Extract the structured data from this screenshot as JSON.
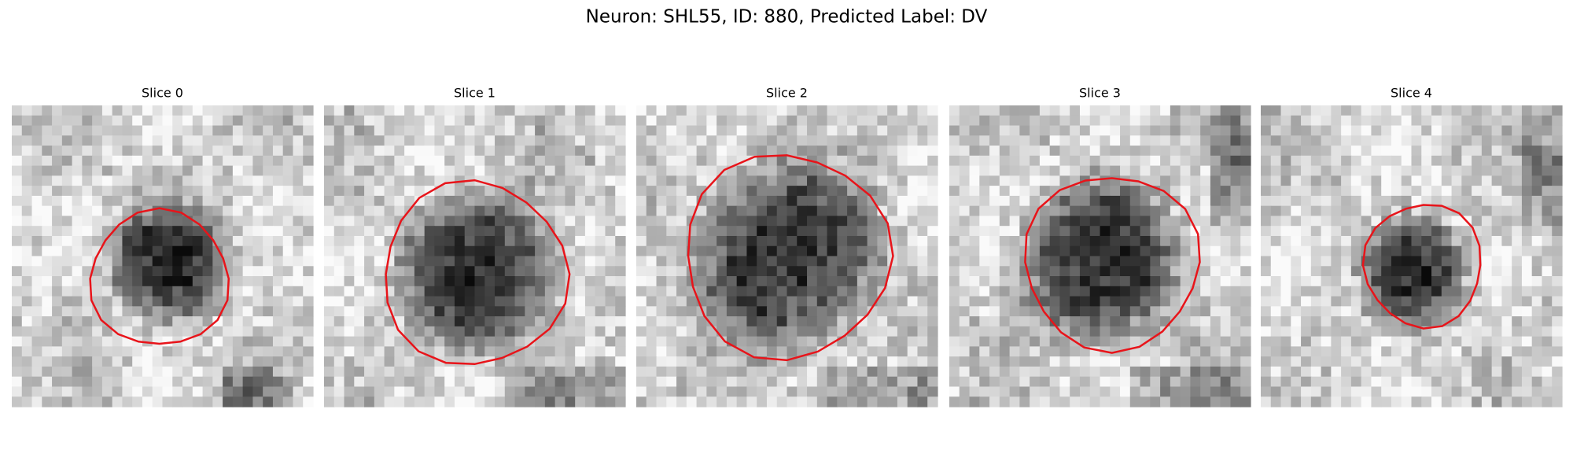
{
  "header": {
    "title": "Neuron: SHL55, ID: 880, Predicted Label: DV"
  },
  "panels": [
    {
      "label": "Slice 0"
    },
    {
      "label": "Slice 1"
    },
    {
      "label": "Slice 2"
    },
    {
      "label": "Slice 3"
    },
    {
      "label": "Slice 4"
    }
  ]
}
